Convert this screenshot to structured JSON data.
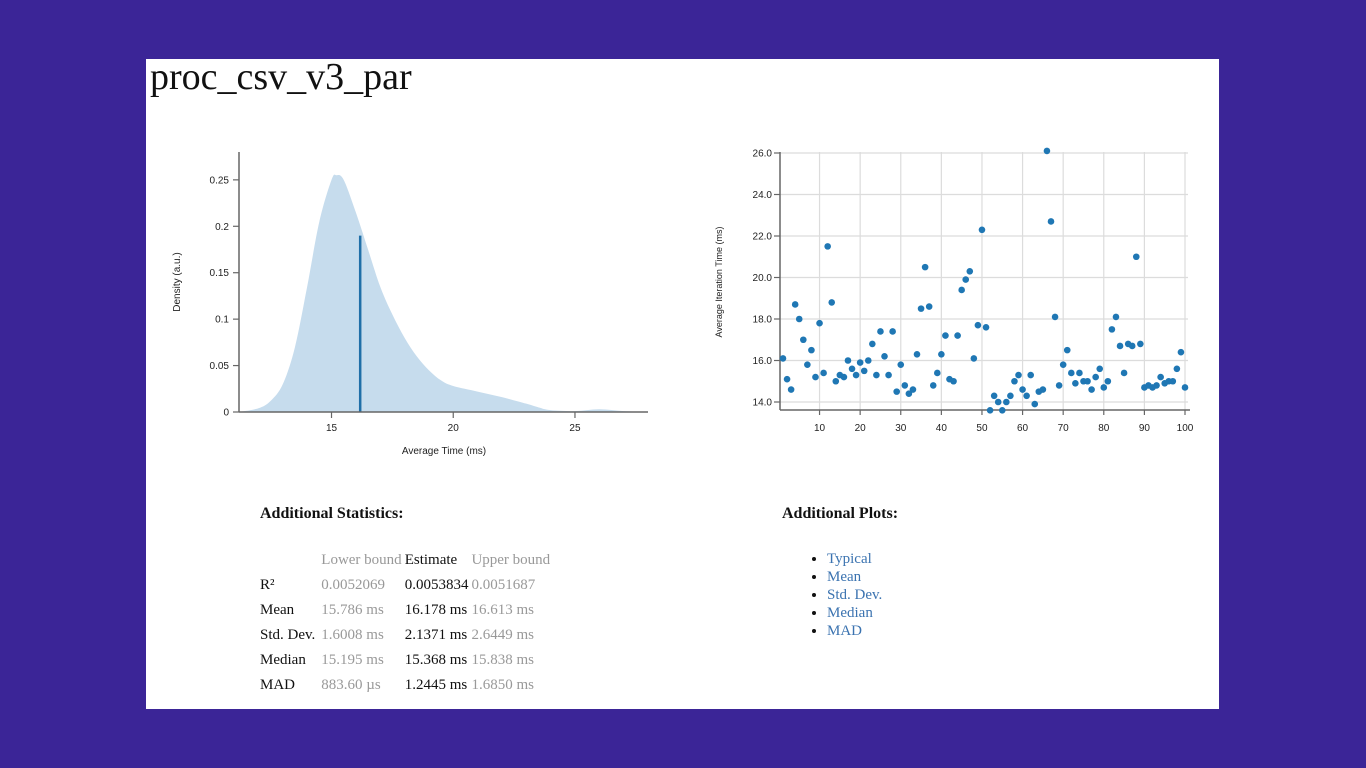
{
  "page": {
    "title": "proc_csv_v3_par",
    "background_color": "#3b2597",
    "panel_color": "#ffffff"
  },
  "pdf_chart": {
    "ylabel": "Density (a.u.)",
    "xlabel": "Average Time (ms)",
    "yticks": [
      "0",
      "0.05",
      "0.1",
      "0.15",
      "0.2",
      "0.25"
    ],
    "xticks": [
      "15",
      "20",
      "25"
    ],
    "fill_color": "#c6dced",
    "mean_line_color": "#1f6fa8"
  },
  "scatter_chart": {
    "ylabel": "Average Iteration Time (ms)",
    "yticks": [
      "14.0",
      "16.0",
      "18.0",
      "20.0",
      "22.0",
      "24.0",
      "26.0"
    ],
    "xticks": [
      "10",
      "20",
      "30",
      "40",
      "50",
      "60",
      "70",
      "80",
      "90",
      "100"
    ],
    "point_color": "#1f77b4"
  },
  "stats": {
    "heading": "Additional Statistics:",
    "columns": [
      "",
      "Lower bound",
      "Estimate",
      "Upper bound"
    ],
    "rows": [
      {
        "label": "R²",
        "lower": "0.0052069",
        "estimate": "0.0053834",
        "upper": "0.0051687"
      },
      {
        "label": "Mean",
        "lower": "15.786 ms",
        "estimate": "16.178 ms",
        "upper": "16.613 ms"
      },
      {
        "label": "Std. Dev.",
        "lower": "1.6008 ms",
        "estimate": "2.1371 ms",
        "upper": "2.6449 ms"
      },
      {
        "label": "Median",
        "lower": "15.195 ms",
        "estimate": "15.368 ms",
        "upper": "15.838 ms"
      },
      {
        "label": "MAD",
        "lower": "883.60 µs",
        "estimate": "1.2445 ms",
        "upper": "1.6850 ms"
      }
    ]
  },
  "plots": {
    "heading": "Additional Plots:",
    "links": [
      "Typical",
      "Mean",
      "Std. Dev.",
      "Median",
      "MAD"
    ]
  },
  "chart_data": [
    {
      "type": "area",
      "title": "",
      "xlabel": "Average Time (ms)",
      "ylabel": "Density (a.u.)",
      "xlim": [
        11.2,
        28.0
      ],
      "ylim": [
        0,
        0.28
      ],
      "x": [
        11.2,
        12.0,
        12.5,
        13.0,
        13.5,
        14.0,
        14.5,
        15.0,
        15.2,
        15.5,
        16.0,
        16.5,
        17.0,
        17.5,
        18.0,
        18.5,
        19.0,
        19.5,
        20.0,
        21.0,
        22.0,
        23.0,
        23.5,
        24.0,
        25.0,
        26.0,
        27.0,
        28.0
      ],
      "y": [
        0.0,
        0.004,
        0.012,
        0.03,
        0.07,
        0.135,
        0.205,
        0.25,
        0.255,
        0.25,
        0.215,
        0.175,
        0.135,
        0.105,
        0.08,
        0.06,
        0.045,
        0.034,
        0.028,
        0.022,
        0.016,
        0.009,
        0.005,
        0.002,
        0.001,
        0.003,
        0.001,
        0.0
      ],
      "annotations": [
        {
          "type": "vline",
          "x": 16.178,
          "label": "mean",
          "height": 0.19
        }
      ],
      "grid": false
    },
    {
      "type": "scatter",
      "title": "",
      "xlabel": "",
      "ylabel": "Average Iteration Time (ms)",
      "xlim": [
        1,
        100
      ],
      "ylim": [
        13.6,
        26.2
      ],
      "grid": true,
      "x": [
        1,
        2,
        3,
        4,
        5,
        6,
        7,
        8,
        9,
        10,
        11,
        12,
        13,
        14,
        15,
        16,
        17,
        18,
        19,
        20,
        21,
        22,
        23,
        24,
        25,
        26,
        27,
        28,
        29,
        30,
        31,
        32,
        33,
        34,
        35,
        36,
        37,
        38,
        39,
        40,
        41,
        42,
        43,
        44,
        45,
        46,
        47,
        48,
        49,
        50,
        51,
        52,
        53,
        54,
        55,
        56,
        57,
        58,
        59,
        60,
        61,
        62,
        63,
        64,
        65,
        66,
        67,
        68,
        69,
        70,
        71,
        72,
        73,
        74,
        75,
        76,
        77,
        78,
        79,
        80,
        81,
        82,
        83,
        84,
        85,
        86,
        87,
        88,
        89,
        90,
        91,
        92,
        93,
        94,
        95,
        96,
        97,
        98,
        99,
        100
      ],
      "y": [
        16.1,
        15.1,
        14.6,
        18.7,
        18.0,
        17.0,
        15.8,
        16.5,
        15.2,
        17.8,
        15.4,
        21.5,
        18.8,
        15.0,
        15.3,
        15.2,
        16.0,
        15.6,
        15.3,
        15.9,
        15.5,
        16.0,
        16.8,
        15.3,
        17.4,
        16.2,
        15.3,
        17.4,
        14.5,
        15.8,
        14.8,
        14.4,
        14.6,
        16.3,
        18.5,
        20.5,
        18.6,
        14.8,
        15.4,
        16.3,
        17.2,
        15.1,
        15.0,
        17.2,
        19.4,
        19.9,
        20.3,
        16.1,
        17.7,
        22.3,
        17.6,
        13.6,
        14.3,
        14.0,
        13.6,
        14.0,
        14.3,
        15.0,
        15.3,
        14.6,
        14.3,
        15.3,
        13.9,
        14.5,
        14.6,
        26.1,
        22.7,
        18.1,
        14.8,
        15.8,
        16.5,
        15.4,
        14.9,
        15.4,
        15.0,
        15.0,
        14.6,
        15.2,
        15.6,
        14.7,
        15.0,
        17.5,
        18.1,
        16.7,
        15.4,
        16.8,
        16.7,
        21.0,
        16.8,
        14.7,
        14.8,
        14.7,
        14.8,
        15.2,
        14.9,
        15.0,
        15.0,
        15.6,
        16.4,
        14.7
      ]
    }
  ]
}
